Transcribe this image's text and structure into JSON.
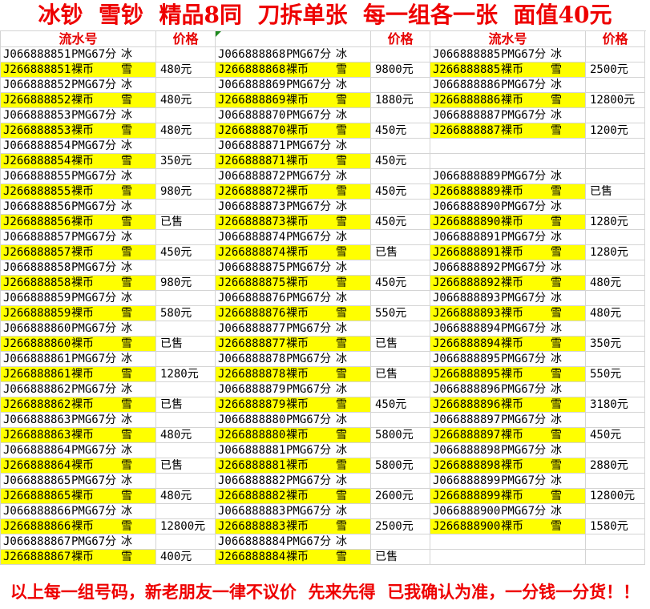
{
  "title": "冰钞  雪钞  精品8同  刀拆单张  每一组各一张  面值40元",
  "footer": "以上每一组号码，新老朋友一律不议价  先来先得  已我确认为准，一分钱一分货！！",
  "colors": {
    "title_red": "#ee0000",
    "header_red": "#e60000",
    "highlight_yellow": "#ffff00",
    "gridline_gray": "#d4d4d4",
    "error_marker_green": "#1e8a1e",
    "text_black": "#000000"
  },
  "icons": {
    "error_triangle": "cell-error-corner-marker"
  },
  "table": {
    "groups": [
      {
        "header": {
          "serial": "流水号",
          "price": "价格",
          "error_marker": false
        },
        "rows": [
          {
            "serial": "J066888851",
            "grade": "PMG67分",
            "type": "冰",
            "price": "",
            "highlight": false
          },
          {
            "serial": "J266888851",
            "grade": "裸币",
            "type": "雪",
            "price": "480元",
            "highlight": true
          },
          {
            "serial": "J066888852",
            "grade": "PMG67分",
            "type": "冰",
            "price": "",
            "highlight": false
          },
          {
            "serial": "J266888852",
            "grade": "裸币",
            "type": "雪",
            "price": "480元",
            "highlight": true
          },
          {
            "serial": "J066888853",
            "grade": "PMG67分",
            "type": "冰",
            "price": "",
            "highlight": false
          },
          {
            "serial": "J266888853",
            "grade": "裸币",
            "type": "雪",
            "price": "480元",
            "highlight": true
          },
          {
            "serial": "J066888854",
            "grade": "PMG67分",
            "type": "冰",
            "price": "",
            "highlight": false
          },
          {
            "serial": "J266888854",
            "grade": "裸币",
            "type": "雪",
            "price": "350元",
            "highlight": true
          },
          {
            "serial": "J066888855",
            "grade": "PMG67分",
            "type": "冰",
            "price": "",
            "highlight": false
          },
          {
            "serial": "J266888855",
            "grade": "裸币",
            "type": "雪",
            "price": "980元",
            "highlight": true
          },
          {
            "serial": "J066888856",
            "grade": "PMG67分",
            "type": "冰",
            "price": "",
            "highlight": false
          },
          {
            "serial": "J266888856",
            "grade": "裸币",
            "type": "雪",
            "price": "已售",
            "highlight": true
          },
          {
            "serial": "J066888857",
            "grade": "PMG67分",
            "type": "冰",
            "price": "",
            "highlight": false
          },
          {
            "serial": "J266888857",
            "grade": "裸币",
            "type": "雪",
            "price": "450元",
            "highlight": true
          },
          {
            "serial": "J066888858",
            "grade": "PMG67分",
            "type": "冰",
            "price": "",
            "highlight": false
          },
          {
            "serial": "J266888858",
            "grade": "裸币",
            "type": "雪",
            "price": "980元",
            "highlight": true
          },
          {
            "serial": "J066888859",
            "grade": "PMG67分",
            "type": "冰",
            "price": "",
            "highlight": false
          },
          {
            "serial": "J266888859",
            "grade": "裸币",
            "type": "雪",
            "price": "580元",
            "highlight": true
          },
          {
            "serial": "J066888860",
            "grade": "PMG67分",
            "type": "冰",
            "price": "",
            "highlight": false
          },
          {
            "serial": "J266888860",
            "grade": "裸币",
            "type": "雪",
            "price": "已售",
            "highlight": true
          },
          {
            "serial": "J066888861",
            "grade": "PMG67分",
            "type": "冰",
            "price": "",
            "highlight": false
          },
          {
            "serial": "J266888861",
            "grade": "裸币",
            "type": "雪",
            "price": "1280元",
            "highlight": true
          },
          {
            "serial": "J066888862",
            "grade": "PMG67分",
            "type": "冰",
            "price": "",
            "highlight": false
          },
          {
            "serial": "J266888862",
            "grade": "裸币",
            "type": "雪",
            "price": "已售",
            "highlight": true
          },
          {
            "serial": "J066888863",
            "grade": "PMG67分",
            "type": "冰",
            "price": "",
            "highlight": false
          },
          {
            "serial": "J266888863",
            "grade": "裸币",
            "type": "雪",
            "price": "480元",
            "highlight": true
          },
          {
            "serial": "J066888864",
            "grade": "PMG67分",
            "type": "冰",
            "price": "",
            "highlight": false
          },
          {
            "serial": "J266888864",
            "grade": "裸币",
            "type": "雪",
            "price": "已售",
            "highlight": true
          },
          {
            "serial": "J066888865",
            "grade": "PMG67分",
            "type": "冰",
            "price": "",
            "highlight": false
          },
          {
            "serial": "J266888865",
            "grade": "裸币",
            "type": "雪",
            "price": "480元",
            "highlight": true
          },
          {
            "serial": "J066888866",
            "grade": "PMG67分",
            "type": "冰",
            "price": "",
            "highlight": false
          },
          {
            "serial": "J266888866",
            "grade": "裸币",
            "type": "雪",
            "price": "12800元",
            "highlight": true
          },
          {
            "serial": "J066888867",
            "grade": "PMG67分",
            "type": "冰",
            "price": "",
            "highlight": false
          },
          {
            "serial": "J266888867",
            "grade": "裸币",
            "type": "雪",
            "price": "400元",
            "highlight": true
          }
        ]
      },
      {
        "header": {
          "serial": "",
          "price": "价格",
          "error_marker": true
        },
        "rows": [
          {
            "serial": "J066888868",
            "grade": "PMG67分",
            "type": "冰",
            "price": "",
            "highlight": false
          },
          {
            "serial": "J266888868",
            "grade": "裸币",
            "type": "雪",
            "price": "9800元",
            "highlight": true
          },
          {
            "serial": "J066888869",
            "grade": "PMG67分",
            "type": "冰",
            "price": "",
            "highlight": false
          },
          {
            "serial": "J266888869",
            "grade": "裸币",
            "type": "雪",
            "price": "1880元",
            "highlight": true
          },
          {
            "serial": "J066888870",
            "grade": "PMG67分",
            "type": "冰",
            "price": "",
            "highlight": false
          },
          {
            "serial": "J266888870",
            "grade": "裸币",
            "type": "雪",
            "price": "450元",
            "highlight": true
          },
          {
            "serial": "J066888871",
            "grade": "PMG67分",
            "type": "冰",
            "price": "",
            "highlight": false
          },
          {
            "serial": "J266888871",
            "grade": "裸币",
            "type": "雪",
            "price": "450元",
            "highlight": true
          },
          {
            "serial": "J066888872",
            "grade": "PMG67分",
            "type": "冰",
            "price": "",
            "highlight": false
          },
          {
            "serial": "J266888872",
            "grade": "裸币",
            "type": "雪",
            "price": "450元",
            "highlight": true
          },
          {
            "serial": "J066888873",
            "grade": "PMG67分",
            "type": "冰",
            "price": "",
            "highlight": false
          },
          {
            "serial": "J266888873",
            "grade": "裸币",
            "type": "雪",
            "price": "450元",
            "highlight": true
          },
          {
            "serial": "J066888874",
            "grade": "PMG67分",
            "type": "冰",
            "price": "",
            "highlight": false
          },
          {
            "serial": "J266888874",
            "grade": "裸币",
            "type": "雪",
            "price": "已售",
            "highlight": true
          },
          {
            "serial": "J066888875",
            "grade": "PMG67分",
            "type": "冰",
            "price": "",
            "highlight": false
          },
          {
            "serial": "J266888875",
            "grade": "裸币",
            "type": "雪",
            "price": "450元",
            "highlight": true
          },
          {
            "serial": "J066888876",
            "grade": "PMG67分",
            "type": "冰",
            "price": "",
            "highlight": false
          },
          {
            "serial": "J266888876",
            "grade": "裸币",
            "type": "雪",
            "price": "550元",
            "highlight": true
          },
          {
            "serial": "J066888877",
            "grade": "PMG67分",
            "type": "冰",
            "price": "",
            "highlight": false
          },
          {
            "serial": "J266888877",
            "grade": "裸币",
            "type": "雪",
            "price": "已售",
            "highlight": true
          },
          {
            "serial": "J066888878",
            "grade": "PMG67分",
            "type": "冰",
            "price": "",
            "highlight": false
          },
          {
            "serial": "J266888878",
            "grade": "裸币",
            "type": "雪",
            "price": "已售",
            "highlight": true
          },
          {
            "serial": "J066888879",
            "grade": "PMG67分",
            "type": "冰",
            "price": "",
            "highlight": false
          },
          {
            "serial": "J266888879",
            "grade": "裸币",
            "type": "雪",
            "price": "450元",
            "highlight": true
          },
          {
            "serial": "J066888880",
            "grade": "PMG67分",
            "type": "冰",
            "price": "",
            "highlight": false
          },
          {
            "serial": "J266888880",
            "grade": "裸币",
            "type": "雪",
            "price": "5800元",
            "highlight": true
          },
          {
            "serial": "J066888881",
            "grade": "PMG67分",
            "type": "冰",
            "price": "",
            "highlight": false
          },
          {
            "serial": "J266888881",
            "grade": "裸币",
            "type": "雪",
            "price": "5800元",
            "highlight": true
          },
          {
            "serial": "J066888882",
            "grade": "PMG67分",
            "type": "冰",
            "price": "",
            "highlight": false
          },
          {
            "serial": "J266888882",
            "grade": "裸币",
            "type": "雪",
            "price": "2600元",
            "highlight": true
          },
          {
            "serial": "J066888883",
            "grade": "PMG67分",
            "type": "冰",
            "price": "",
            "highlight": false
          },
          {
            "serial": "J266888883",
            "grade": "裸币",
            "type": "雪",
            "price": "2500元",
            "highlight": true
          },
          {
            "serial": "J066888884",
            "grade": "PMG67分",
            "type": "冰",
            "price": "",
            "highlight": false
          },
          {
            "serial": "J266888884",
            "grade": "裸币",
            "type": "雪",
            "price": "已售",
            "highlight": true
          }
        ]
      },
      {
        "header": {
          "serial": "流水号",
          "price": "价格",
          "error_marker": false
        },
        "rows": [
          {
            "serial": "J066888885",
            "grade": "PMG67分",
            "type": "冰",
            "price": "",
            "highlight": false
          },
          {
            "serial": "J266888885",
            "grade": "裸币",
            "type": "雪",
            "price": "2500元",
            "highlight": true
          },
          {
            "serial": "J066888886",
            "grade": "PMG67分",
            "type": "冰",
            "price": "",
            "highlight": false
          },
          {
            "serial": "J266888886",
            "grade": "裸币",
            "type": "雪",
            "price": "12800元",
            "highlight": true
          },
          {
            "serial": "J066888887",
            "grade": "PMG67分",
            "type": "冰",
            "price": "",
            "highlight": false
          },
          {
            "serial": "J266888887",
            "grade": "裸币",
            "type": "雪",
            "price": "1200元",
            "highlight": true
          },
          {
            "serial": "",
            "grade": "",
            "type": "",
            "price": "",
            "highlight": false
          },
          {
            "serial": "",
            "grade": "",
            "type": "",
            "price": "",
            "highlight": false
          },
          {
            "serial": "J066888889",
            "grade": "PMG67分",
            "type": "冰",
            "price": "",
            "highlight": false
          },
          {
            "serial": "J266888889",
            "grade": "裸币",
            "type": "雪",
            "price": "已售",
            "highlight": true
          },
          {
            "serial": "J066888890",
            "grade": "PMG67分",
            "type": "冰",
            "price": "",
            "highlight": false
          },
          {
            "serial": "J266888890",
            "grade": "裸币",
            "type": "雪",
            "price": "1280元",
            "highlight": true
          },
          {
            "serial": "J066888891",
            "grade": "PMG67分",
            "type": "冰",
            "price": "",
            "highlight": false
          },
          {
            "serial": "J266888891",
            "grade": "裸币",
            "type": "雪",
            "price": "1280元",
            "highlight": true
          },
          {
            "serial": "J066888892",
            "grade": "PMG67分",
            "type": "冰",
            "price": "",
            "highlight": false
          },
          {
            "serial": "J266888892",
            "grade": "裸币",
            "type": "雪",
            "price": "480元",
            "highlight": true
          },
          {
            "serial": "J066888893",
            "grade": "PMG67分",
            "type": "冰",
            "price": "",
            "highlight": false
          },
          {
            "serial": "J266888893",
            "grade": "裸币",
            "type": "雪",
            "price": "480元",
            "highlight": true
          },
          {
            "serial": "J066888894",
            "grade": "PMG67分",
            "type": "冰",
            "price": "",
            "highlight": false
          },
          {
            "serial": "J266888894",
            "grade": "裸币",
            "type": "雪",
            "price": "350元",
            "highlight": true
          },
          {
            "serial": "J066888895",
            "grade": "PMG67分",
            "type": "冰",
            "price": "",
            "highlight": false
          },
          {
            "serial": "J266888895",
            "grade": "裸币",
            "type": "雪",
            "price": "550元",
            "highlight": true
          },
          {
            "serial": "J066888896",
            "grade": "PMG67分",
            "type": "冰",
            "price": "",
            "highlight": false
          },
          {
            "serial": "J266888896",
            "grade": "裸币",
            "type": "雪",
            "price": "3180元",
            "highlight": true
          },
          {
            "serial": "J066888897",
            "grade": "PMG67分",
            "type": "冰",
            "price": "",
            "highlight": false
          },
          {
            "serial": "J266888897",
            "grade": "裸币",
            "type": "雪",
            "price": "450元",
            "highlight": true
          },
          {
            "serial": "J066888898",
            "grade": "PMG67分",
            "type": "冰",
            "price": "",
            "highlight": false
          },
          {
            "serial": "J266888898",
            "grade": "裸币",
            "type": "雪",
            "price": "2880元",
            "highlight": true
          },
          {
            "serial": "J066888899",
            "grade": "PMG67分",
            "type": "冰",
            "price": "",
            "highlight": false
          },
          {
            "serial": "J266888899",
            "grade": "裸币",
            "type": "雪",
            "price": "12800元",
            "highlight": true
          },
          {
            "serial": "J066888900",
            "grade": "PMG67分",
            "type": "冰",
            "price": "",
            "highlight": false
          },
          {
            "serial": "J266888900",
            "grade": "裸币",
            "type": "雪",
            "price": "1580元",
            "highlight": true
          },
          {
            "serial": "",
            "grade": "",
            "type": "",
            "price": "",
            "highlight": false
          },
          {
            "serial": "",
            "grade": "",
            "type": "",
            "price": "",
            "highlight": false
          }
        ]
      }
    ]
  }
}
